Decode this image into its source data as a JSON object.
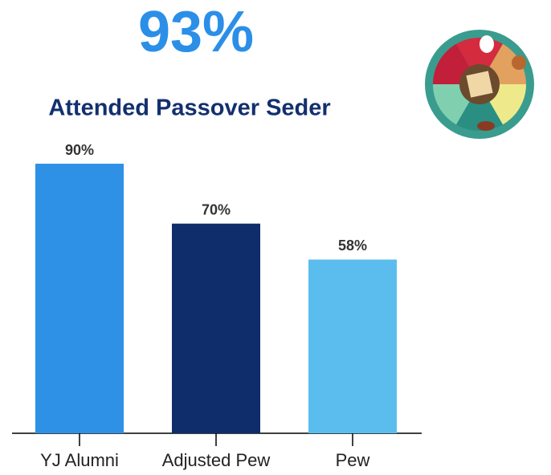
{
  "headline": "93%",
  "chart_data": {
    "type": "bar",
    "title": "Attended Passover Seder",
    "categories": [
      "YJ Alumni",
      "Adjusted Pew",
      "Pew"
    ],
    "values": [
      90,
      70,
      58
    ],
    "value_labels": [
      "90%",
      "70%",
      "58%"
    ],
    "colors": [
      "#2e91e6",
      "#0f2d6b",
      "#5bbdee"
    ]
  }
}
